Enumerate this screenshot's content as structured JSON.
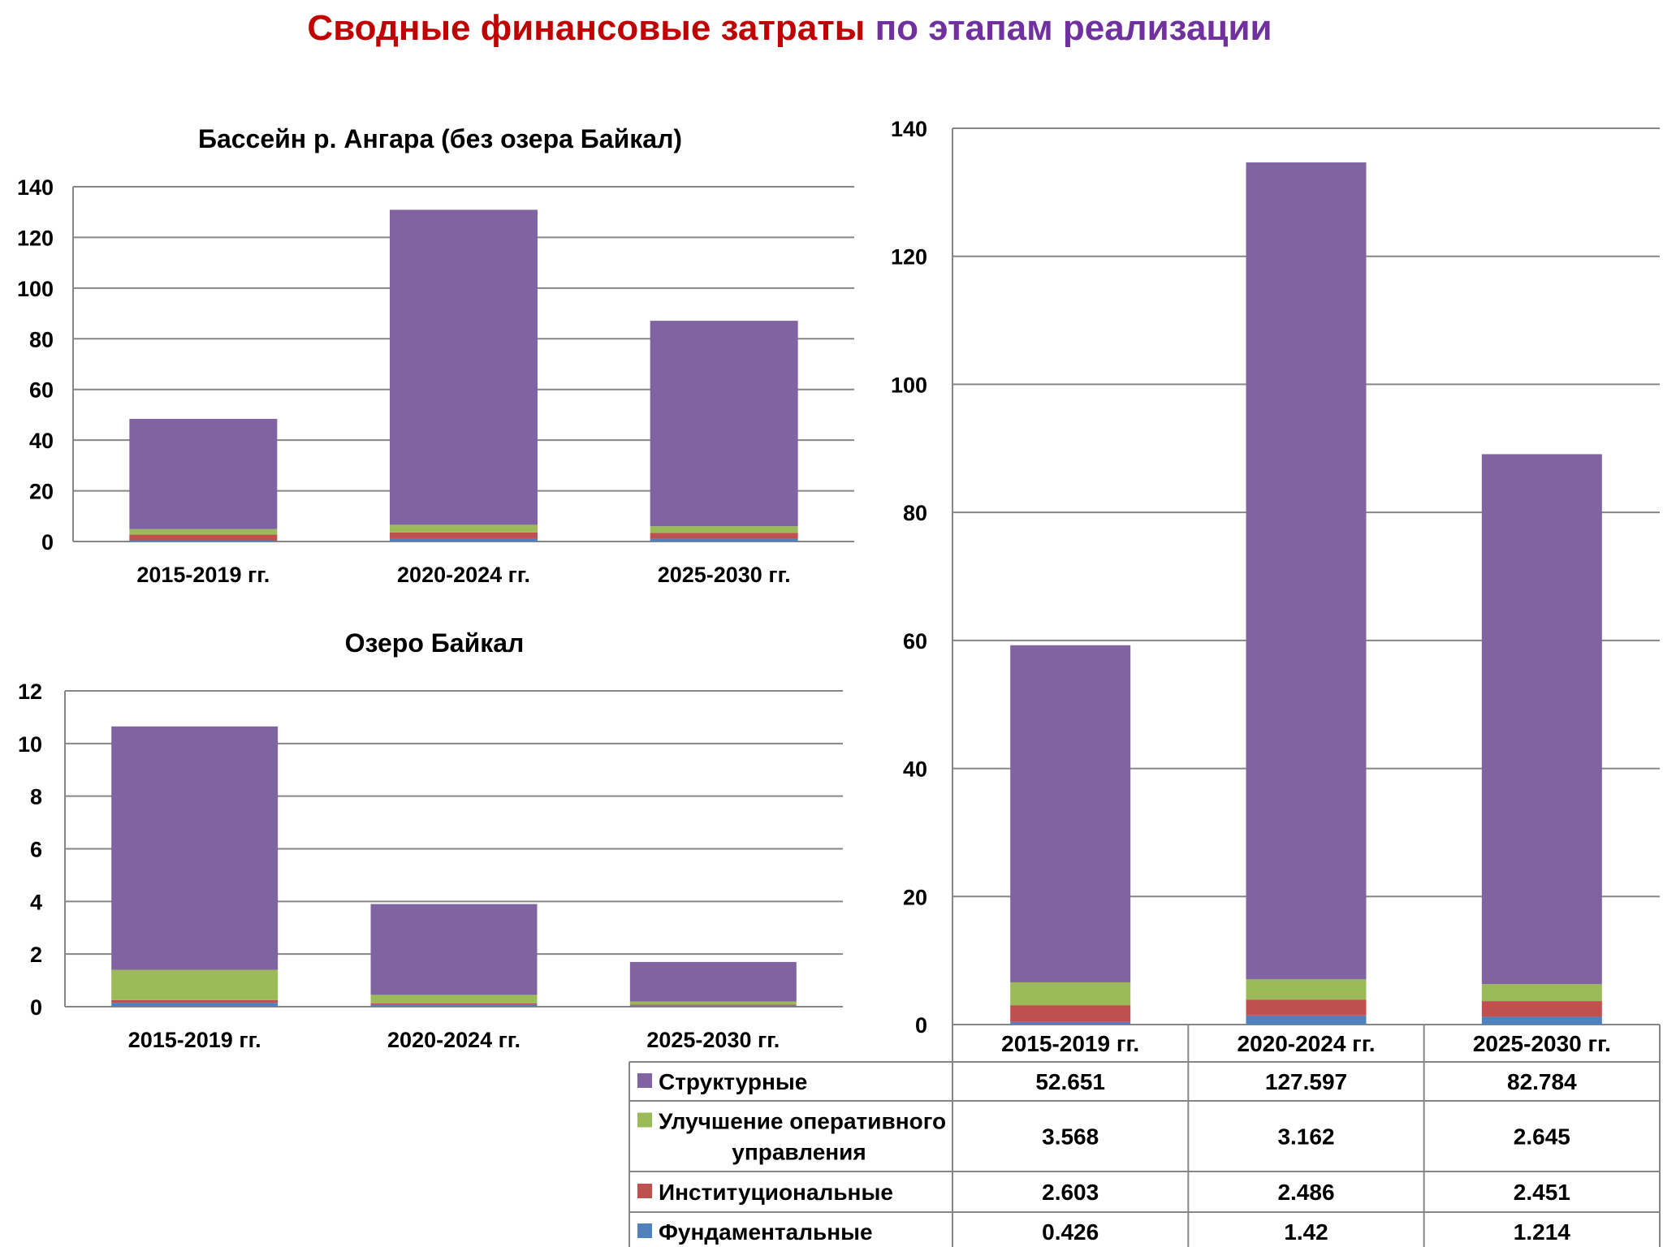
{
  "title": {
    "part1": "Сводные финансовые затраты",
    "part2": "по этапам реализации"
  },
  "colors": {
    "title_part1": "#C00000",
    "title_part2": "#7030A0",
    "structural": "#8064A2",
    "operational": "#9BBB59",
    "institutional": "#C0504D",
    "fundamental": "#4F81BD",
    "gridline": "#868686"
  },
  "chart_data": [
    {
      "type": "bar",
      "stacked": true,
      "title": "Бассейн р. Ангара (без озера Байкал)",
      "categories": [
        "2015-2019 гг.",
        "2020-2024 гг.",
        "2025-2030 гг."
      ],
      "series": [
        {
          "key": "fundamental",
          "values": [
            0.3,
            1.3,
            1.1
          ]
        },
        {
          "key": "institutional",
          "values": [
            2.4,
            2.3,
            2.3
          ]
        },
        {
          "key": "operational",
          "values": [
            2.2,
            3.0,
            2.6
          ]
        },
        {
          "key": "structural",
          "values": [
            43.5,
            124.3,
            81.1
          ]
        }
      ],
      "ylim": [
        0,
        140
      ],
      "yticks": [
        0,
        20,
        40,
        60,
        80,
        100,
        120,
        140
      ],
      "grid": true,
      "legend": "none"
    },
    {
      "type": "bar",
      "stacked": true,
      "title": "Озеро Байкал",
      "categories": [
        "2015-2019 гг.",
        "2020-2024 гг.",
        "2025-2030 гг."
      ],
      "series": [
        {
          "key": "fundamental",
          "values": [
            0.15,
            0.08,
            0.05
          ]
        },
        {
          "key": "institutional",
          "values": [
            0.1,
            0.05,
            0.03
          ]
        },
        {
          "key": "operational",
          "values": [
            1.15,
            0.32,
            0.12
          ]
        },
        {
          "key": "structural",
          "values": [
            9.25,
            3.45,
            1.5
          ]
        }
      ],
      "ylim": [
        0,
        12
      ],
      "yticks": [
        0,
        2,
        4,
        6,
        8,
        10,
        12
      ],
      "grid": true,
      "legend": "none"
    },
    {
      "type": "bar",
      "stacked": true,
      "title": "",
      "categories": [
        "2015-2019 гг.",
        "2020-2024 гг.",
        "2025-2030 гг."
      ],
      "series": [
        {
          "key": "fundamental",
          "name": "Фундаментальные",
          "values": [
            0.426,
            1.42,
            1.214
          ]
        },
        {
          "key": "institutional",
          "name": "Институциональные",
          "values": [
            2.603,
            2.486,
            2.451
          ]
        },
        {
          "key": "operational",
          "name": "Улучшение оперативного управления",
          "values": [
            3.568,
            3.162,
            2.645
          ]
        },
        {
          "key": "structural",
          "name": "Структурные",
          "values": [
            52.651,
            127.597,
            82.784
          ]
        }
      ],
      "ylim": [
        0,
        140
      ],
      "yticks": [
        0,
        20,
        40,
        60,
        80,
        100,
        120,
        140
      ],
      "grid": true,
      "legend": "data-table",
      "table": {
        "rows": [
          {
            "key": "structural",
            "label_lines": [
              "Структурные"
            ],
            "values": [
              "52.651",
              "127.597",
              "82.784"
            ]
          },
          {
            "key": "operational",
            "label_lines": [
              "Улучшение оперативного",
              "управления"
            ],
            "values": [
              "3.568",
              "3.162",
              "2.645"
            ]
          },
          {
            "key": "institutional",
            "label_lines": [
              "Институциональные"
            ],
            "values": [
              "2.603",
              "2.486",
              "2.451"
            ]
          },
          {
            "key": "fundamental",
            "label_lines": [
              "Фундаментальные"
            ],
            "values": [
              "0.426",
              "1.42",
              "1.214"
            ]
          }
        ]
      }
    }
  ]
}
